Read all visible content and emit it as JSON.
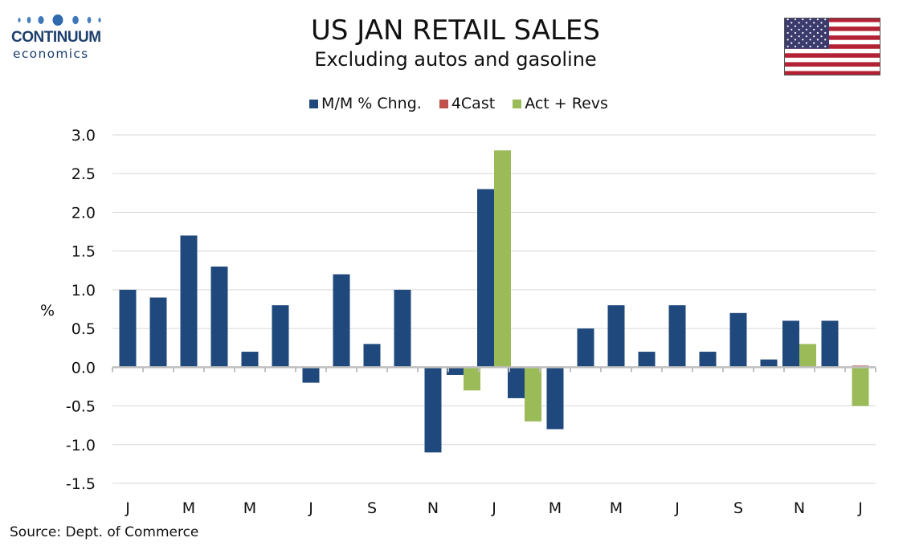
{
  "logo": {
    "name": "CONTINUUM",
    "sub": "economics"
  },
  "title": "US JAN RETAIL SALES",
  "subtitle": "Excluding autos and gasoline",
  "source": "Source: Dept. of Commerce",
  "colors": {
    "mm": "#1f497d",
    "forecast": "#c0504d",
    "actual": "#9bbb59",
    "grid": "#d9d9d9",
    "axis": "#bfbfbf"
  },
  "chart_data": {
    "type": "bar",
    "ylabel": "%",
    "ylim": [
      -1.5,
      3.0
    ],
    "yticks": [
      "3.0",
      "2.5",
      "2.0",
      "1.5",
      "1.0",
      "0.5",
      "0.0",
      "-0.5",
      "-1.0",
      "-1.5"
    ],
    "ytick_values": [
      3.0,
      2.5,
      2.0,
      1.5,
      1.0,
      0.5,
      0.0,
      -0.5,
      -1.0,
      -1.5
    ],
    "grid": true,
    "legend_position": "top-center",
    "x_tick_labels": [
      "J",
      "M",
      "M",
      "J",
      "S",
      "N",
      "J",
      "M",
      "M",
      "J",
      "S",
      "N",
      "J"
    ],
    "series": [
      {
        "name": "M/M % Chng.",
        "color": "#1f497d",
        "values": [
          1.0,
          0.9,
          1.7,
          1.3,
          0.2,
          0.8,
          -0.2,
          1.2,
          0.3,
          1.0,
          -1.1,
          -0.1,
          2.3,
          -0.4,
          -0.8,
          0.5,
          0.8,
          0.2,
          0.8,
          0.2,
          0.7,
          0.1,
          0.6,
          0.6,
          null
        ]
      },
      {
        "name": "4Cast",
        "color": "#c0504d",
        "values": [
          null,
          null,
          null,
          null,
          null,
          null,
          null,
          null,
          null,
          null,
          null,
          null,
          null,
          null,
          null,
          null,
          null,
          null,
          null,
          null,
          null,
          null,
          null,
          null,
          0.02
        ]
      },
      {
        "name": "Act + Revs",
        "color": "#9bbb59",
        "values": [
          null,
          null,
          null,
          null,
          null,
          null,
          null,
          null,
          null,
          null,
          null,
          -0.3,
          2.8,
          -0.7,
          null,
          null,
          null,
          null,
          null,
          null,
          null,
          null,
          0.3,
          null,
          -0.5
        ]
      }
    ]
  }
}
